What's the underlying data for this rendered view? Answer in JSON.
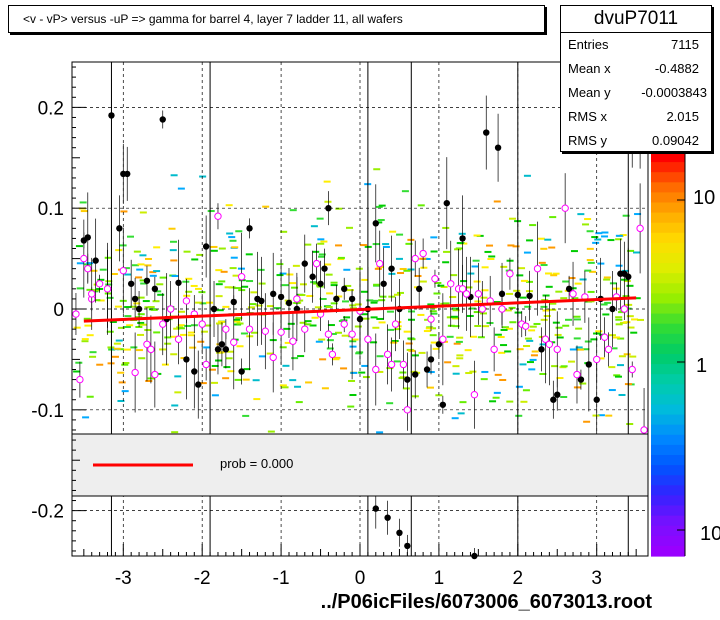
{
  "title": "<v - vP>       versus  -uP =>  gamma for barrel 4, layer 7 ladder 11, all wafers",
  "stats": {
    "name": "dvuP7011",
    "rows": [
      {
        "label": "Entries",
        "value": "7115"
      },
      {
        "label": "Mean x",
        "value": "-0.4882"
      },
      {
        "label": "Mean y",
        "value": "-0.0003843"
      },
      {
        "label": "RMS x",
        "value": "2.015"
      },
      {
        "label": "RMS y",
        "value": "0.09042"
      }
    ]
  },
  "legend": {
    "label": "prob = 0.000"
  },
  "footer": "../P06icFiles/6073006_6073013.root",
  "colors": {
    "fit": "#ff0000",
    "profile_black": "#000000",
    "profile_open": "#ff00ff",
    "legend_bg": "#eeeeee"
  },
  "chart_data": {
    "type": "scatter",
    "title": "<v - vP>       versus  -uP =>  gamma for barrel 4, layer 7 ladder 11, all wafers",
    "xlabel": "",
    "ylabel": "",
    "xlim": [
      -3.65,
      3.65
    ],
    "ylim": [
      -0.245,
      0.245
    ],
    "x_ticks": [
      "-3",
      "-2",
      "-1",
      "0",
      "1",
      "2",
      "3"
    ],
    "y_ticks": [
      "0.2",
      "0.1",
      "0",
      "-0.1",
      "-0.2"
    ],
    "grid": true,
    "color_scale_labels": [
      "10",
      "1",
      "10"
    ],
    "fit_line": {
      "x": [
        -3.5,
        3.5
      ],
      "y": [
        -0.012,
        0.011
      ]
    },
    "series": [
      {
        "marker": "filled-circle",
        "points": [
          [
            -3.5,
            0.068
          ],
          [
            -3.45,
            0.071
          ],
          [
            -3.35,
            0.048
          ],
          [
            -3.2,
            0.02
          ],
          [
            -3.15,
            0.192
          ],
          [
            -3.05,
            0.08
          ],
          [
            -3.0,
            0.134
          ],
          [
            -2.95,
            0.134
          ],
          [
            -2.9,
            0.025
          ],
          [
            -2.85,
            0.01
          ],
          [
            -2.8,
            0.0
          ],
          [
            -2.7,
            0.028
          ],
          [
            -2.6,
            0.02
          ],
          [
            -2.5,
            0.188
          ],
          [
            -2.45,
            -0.01
          ],
          [
            -2.3,
            0.026
          ],
          [
            -2.2,
            -0.05
          ],
          [
            -2.1,
            -0.062
          ],
          [
            -2.05,
            -0.075
          ],
          [
            -1.95,
            0.062
          ],
          [
            -1.85,
            0.0
          ],
          [
            -1.8,
            -0.04
          ],
          [
            -1.75,
            -0.035
          ],
          [
            -1.7,
            -0.04
          ],
          [
            -1.6,
            0.007
          ],
          [
            -1.5,
            -0.062
          ],
          [
            -1.4,
            0.08
          ],
          [
            -1.3,
            0.01
          ],
          [
            -1.25,
            0.008
          ],
          [
            -1.1,
            0.015
          ],
          [
            -1.0,
            0.012
          ],
          [
            -0.9,
            0.006
          ],
          [
            -0.8,
            0.0
          ],
          [
            -0.7,
            0.045
          ],
          [
            -0.6,
            0.032
          ],
          [
            -0.5,
            0.025
          ],
          [
            -0.45,
            0.04
          ],
          [
            -0.4,
            0.1
          ],
          [
            -0.3,
            0.01
          ],
          [
            -0.2,
            0.02
          ],
          [
            -0.1,
            0.01
          ],
          [
            0.0,
            -0.01
          ],
          [
            0.1,
            0.0
          ],
          [
            0.2,
            0.085
          ],
          [
            0.3,
            0.025
          ],
          [
            0.4,
            0.04
          ],
          [
            0.5,
            0.0
          ],
          [
            0.6,
            -0.07
          ],
          [
            0.7,
            -0.065
          ],
          [
            0.75,
            0.02
          ],
          [
            0.85,
            -0.06
          ],
          [
            0.9,
            -0.05
          ],
          [
            1.0,
            -0.035
          ],
          [
            1.05,
            -0.095
          ],
          [
            1.1,
            0.105
          ],
          [
            1.3,
            0.07
          ],
          [
            1.4,
            0.012
          ],
          [
            1.6,
            0.175
          ],
          [
            1.75,
            0.16
          ],
          [
            1.8,
            0.015
          ],
          [
            2.0,
            0.014
          ],
          [
            2.15,
            0.013
          ],
          [
            2.3,
            -0.04
          ],
          [
            2.45,
            -0.09
          ],
          [
            2.5,
            -0.085
          ],
          [
            2.65,
            0.02
          ],
          [
            2.8,
            -0.07
          ],
          [
            2.9,
            -0.055
          ],
          [
            3.0,
            -0.09
          ],
          [
            3.05,
            0.01
          ],
          [
            3.2,
            0.0
          ],
          [
            3.3,
            0.035
          ],
          [
            3.35,
            0.035
          ],
          [
            3.4,
            0.032
          ],
          [
            3.45,
            0.166
          ],
          [
            3.55,
            0.162
          ],
          [
            0.2,
            -0.198
          ],
          [
            0.35,
            -0.207
          ],
          [
            0.5,
            -0.222
          ],
          [
            0.6,
            -0.235
          ],
          [
            1.45,
            -0.245
          ]
        ]
      },
      {
        "marker": "open-circle",
        "points": [
          [
            -3.6,
            -0.005
          ],
          [
            -3.55,
            -0.07
          ],
          [
            -3.45,
            0.04
          ],
          [
            -3.4,
            0.01
          ],
          [
            -3.3,
            0.025
          ],
          [
            -3.2,
            0.02
          ],
          [
            -3.0,
            0.038
          ],
          [
            -2.85,
            -0.063
          ],
          [
            -2.7,
            -0.035
          ],
          [
            -2.65,
            -0.04
          ],
          [
            -2.5,
            -0.015
          ],
          [
            -2.4,
            0.0
          ],
          [
            -2.3,
            -0.03
          ],
          [
            -2.2,
            0.008
          ],
          [
            -2.1,
            -0.005
          ],
          [
            -1.95,
            -0.055
          ],
          [
            -1.8,
            0.092
          ],
          [
            -1.7,
            -0.02
          ],
          [
            -1.6,
            -0.033
          ],
          [
            -1.5,
            0.032
          ],
          [
            -1.4,
            -0.02
          ],
          [
            -1.2,
            -0.022
          ],
          [
            -1.1,
            -0.048
          ],
          [
            -1.0,
            -0.023
          ],
          [
            -0.85,
            -0.032
          ],
          [
            -0.8,
            0.01
          ],
          [
            -0.7,
            -0.02
          ],
          [
            -0.55,
            0.045
          ],
          [
            -0.5,
            -0.005
          ],
          [
            -0.4,
            -0.025
          ],
          [
            -0.35,
            -0.045
          ],
          [
            -0.2,
            -0.015
          ],
          [
            -0.1,
            -0.025
          ],
          [
            0.0,
            -0.002
          ],
          [
            0.1,
            -0.03
          ],
          [
            0.2,
            -0.06
          ],
          [
            0.25,
            0.045
          ],
          [
            0.35,
            -0.045
          ],
          [
            0.45,
            -0.015
          ],
          [
            0.55,
            -0.055
          ],
          [
            0.6,
            -0.1
          ],
          [
            0.7,
            0.05
          ],
          [
            0.8,
            0.055
          ],
          [
            0.9,
            -0.01
          ],
          [
            0.95,
            0.03
          ],
          [
            1.05,
            -0.03
          ],
          [
            1.15,
            0.025
          ],
          [
            1.25,
            0.02
          ],
          [
            1.35,
            0.015
          ],
          [
            1.45,
            -0.085
          ],
          [
            1.5,
            0.015
          ],
          [
            1.55,
            0.0
          ],
          [
            1.65,
            0.008
          ],
          [
            1.7,
            -0.04
          ],
          [
            1.8,
            0.0
          ],
          [
            1.9,
            0.035
          ],
          [
            2.05,
            -0.015
          ],
          [
            2.1,
            -0.017
          ],
          [
            2.25,
            0.04
          ],
          [
            2.35,
            -0.03
          ],
          [
            2.4,
            -0.035
          ],
          [
            2.5,
            -0.04
          ],
          [
            2.6,
            0.1
          ],
          [
            2.7,
            0.015
          ],
          [
            2.75,
            -0.065
          ],
          [
            2.85,
            0.012
          ],
          [
            3.0,
            -0.05
          ],
          [
            3.1,
            -0.028
          ],
          [
            3.15,
            -0.04
          ],
          [
            3.25,
            0.012
          ],
          [
            3.35,
            0.0
          ],
          [
            3.45,
            -0.06
          ],
          [
            3.55,
            0.08
          ],
          [
            3.6,
            -0.12
          ],
          [
            -3.5,
            0.05
          ],
          [
            -3.4,
            0.015
          ],
          [
            -2.6,
            -0.065
          ],
          [
            -2.0,
            -0.015
          ],
          [
            0.4,
            -0.055
          ],
          [
            1.3,
            0.02
          ]
        ]
      }
    ]
  }
}
